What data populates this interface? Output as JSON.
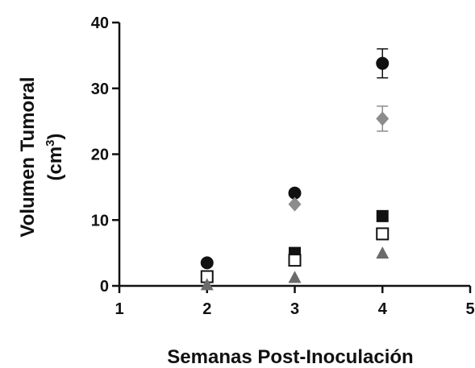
{
  "chart_data": {
    "type": "scatter",
    "title": "",
    "xlabel": "Semanas Post-Inoculación",
    "ylabel_line1": "Volumen Tumoral",
    "ylabel_line2_base": "(cm",
    "ylabel_line2_sup": "3",
    "ylabel_line2_end": ")",
    "xlim": [
      1,
      5
    ],
    "ylim": [
      0,
      40
    ],
    "x_ticks": [
      {
        "value": 1,
        "label": "1"
      },
      {
        "value": 2,
        "label": "2"
      },
      {
        "value": 3,
        "label": "3"
      },
      {
        "value": 4,
        "label": "4"
      },
      {
        "value": 5,
        "label": "5"
      }
    ],
    "y_ticks": [
      {
        "value": 0,
        "label": "0"
      },
      {
        "value": 10,
        "label": "10"
      },
      {
        "value": 20,
        "label": "20"
      },
      {
        "value": 30,
        "label": "30"
      },
      {
        "value": 40,
        "label": "40"
      }
    ],
    "grid": false,
    "legend": "none",
    "series": [
      {
        "marker": "circle-filled",
        "color": "#111111",
        "points": [
          {
            "x": 2,
            "y": 3.5
          },
          {
            "x": 3,
            "y": 14.1
          },
          {
            "x": 4,
            "y": 33.8,
            "err": 2.2
          }
        ]
      },
      {
        "marker": "diamond-filled",
        "color": "#8c8c8c",
        "points": [
          {
            "x": 3,
            "y": 12.4
          },
          {
            "x": 4,
            "y": 25.4,
            "err": 1.9
          }
        ]
      },
      {
        "marker": "square-filled",
        "color": "#111111",
        "points": [
          {
            "x": 3,
            "y": 5.0
          },
          {
            "x": 4,
            "y": 10.6
          }
        ]
      },
      {
        "marker": "square-open",
        "color": "#111111",
        "points": [
          {
            "x": 2,
            "y": 1.4
          },
          {
            "x": 3,
            "y": 3.9
          },
          {
            "x": 4,
            "y": 7.9
          }
        ]
      },
      {
        "marker": "triangle-filled",
        "color": "#6b6b6b",
        "points": [
          {
            "x": 2,
            "y": 0.2
          },
          {
            "x": 3,
            "y": 1.3
          },
          {
            "x": 4,
            "y": 5.0
          }
        ]
      }
    ]
  }
}
